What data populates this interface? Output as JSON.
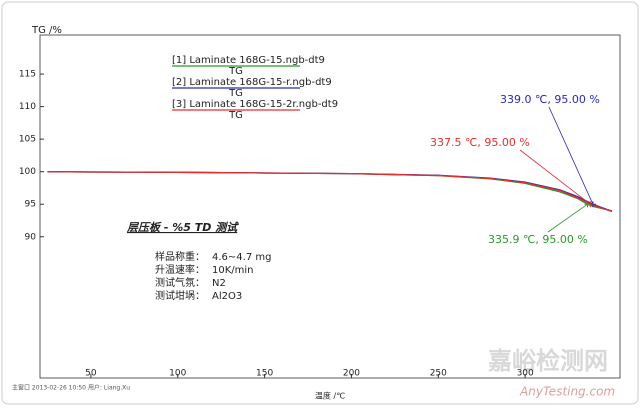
{
  "chart_data": {
    "type": "line",
    "ylabel": "TG /%",
    "xlabel": "温度 /℃",
    "xlim": [
      20.7,
      354.6
    ],
    "ylim": [
      68.3,
      121
    ],
    "xticks": [
      50,
      100,
      150,
      200,
      250,
      300
    ],
    "yticks": [
      90,
      95,
      100,
      105,
      110,
      115
    ],
    "series": [
      {
        "name": "[1] Laminate 168G-15.ngb-dt9",
        "legend_sub": "TG",
        "color": "#2a9a2a",
        "x": [
          25,
          50,
          100,
          150,
          200,
          250,
          280,
          300,
          320,
          330,
          335.9,
          340,
          350
        ],
        "values": [
          100.0,
          99.95,
          99.9,
          99.8,
          99.7,
          99.4,
          98.9,
          98.2,
          96.9,
          95.9,
          95.0,
          94.6,
          94.0
        ]
      },
      {
        "name": "[2] Laminate 168G-15-r.ngb-dt9",
        "legend_sub": "TG",
        "color": "#2a2ab0",
        "x": [
          25,
          50,
          100,
          150,
          200,
          250,
          280,
          300,
          320,
          330,
          339.0,
          345,
          350
        ],
        "values": [
          100.0,
          99.95,
          99.9,
          99.8,
          99.7,
          99.45,
          99.0,
          98.4,
          97.2,
          96.2,
          95.0,
          94.4,
          93.9
        ]
      },
      {
        "name": "[3] Laminate 168G-15-2r.ngb-dt9",
        "legend_sub": "TG",
        "color": "#e03030",
        "x": [
          25,
          50,
          100,
          150,
          200,
          250,
          280,
          300,
          320,
          330,
          337.5,
          345,
          350
        ],
        "values": [
          100.0,
          99.95,
          99.9,
          99.8,
          99.7,
          99.4,
          98.95,
          98.3,
          97.1,
          96.0,
          95.0,
          94.3,
          93.9
        ]
      }
    ],
    "annotations": [
      {
        "label": "339.0 ℃, 95.00 %",
        "x": 339.0,
        "y": 95.0,
        "color": "#2a2ab0"
      },
      {
        "label": "337.5 ℃, 95.00 %",
        "x": 337.5,
        "y": 95.0,
        "color": "#e03030"
      },
      {
        "label": "335.9 ℃, 95.00 %",
        "x": 335.9,
        "y": 95.0,
        "color": "#2a9a2a"
      }
    ],
    "info_title": "层压板 - %5 TD 测试",
    "info": [
      [
        "样品称重：",
        "4.6~4.7 mg"
      ],
      [
        "升温速率：",
        "10K/min"
      ],
      [
        "测试气氛：",
        "N2"
      ],
      [
        "测试坩埚：",
        "Al2O3"
      ]
    ]
  },
  "footer": [
    "主窗口 2013-02-26 10:50",
    "用户: Liang.Xu"
  ],
  "watermark": [
    "嘉峪检测网",
    "AnyTesting.com"
  ]
}
